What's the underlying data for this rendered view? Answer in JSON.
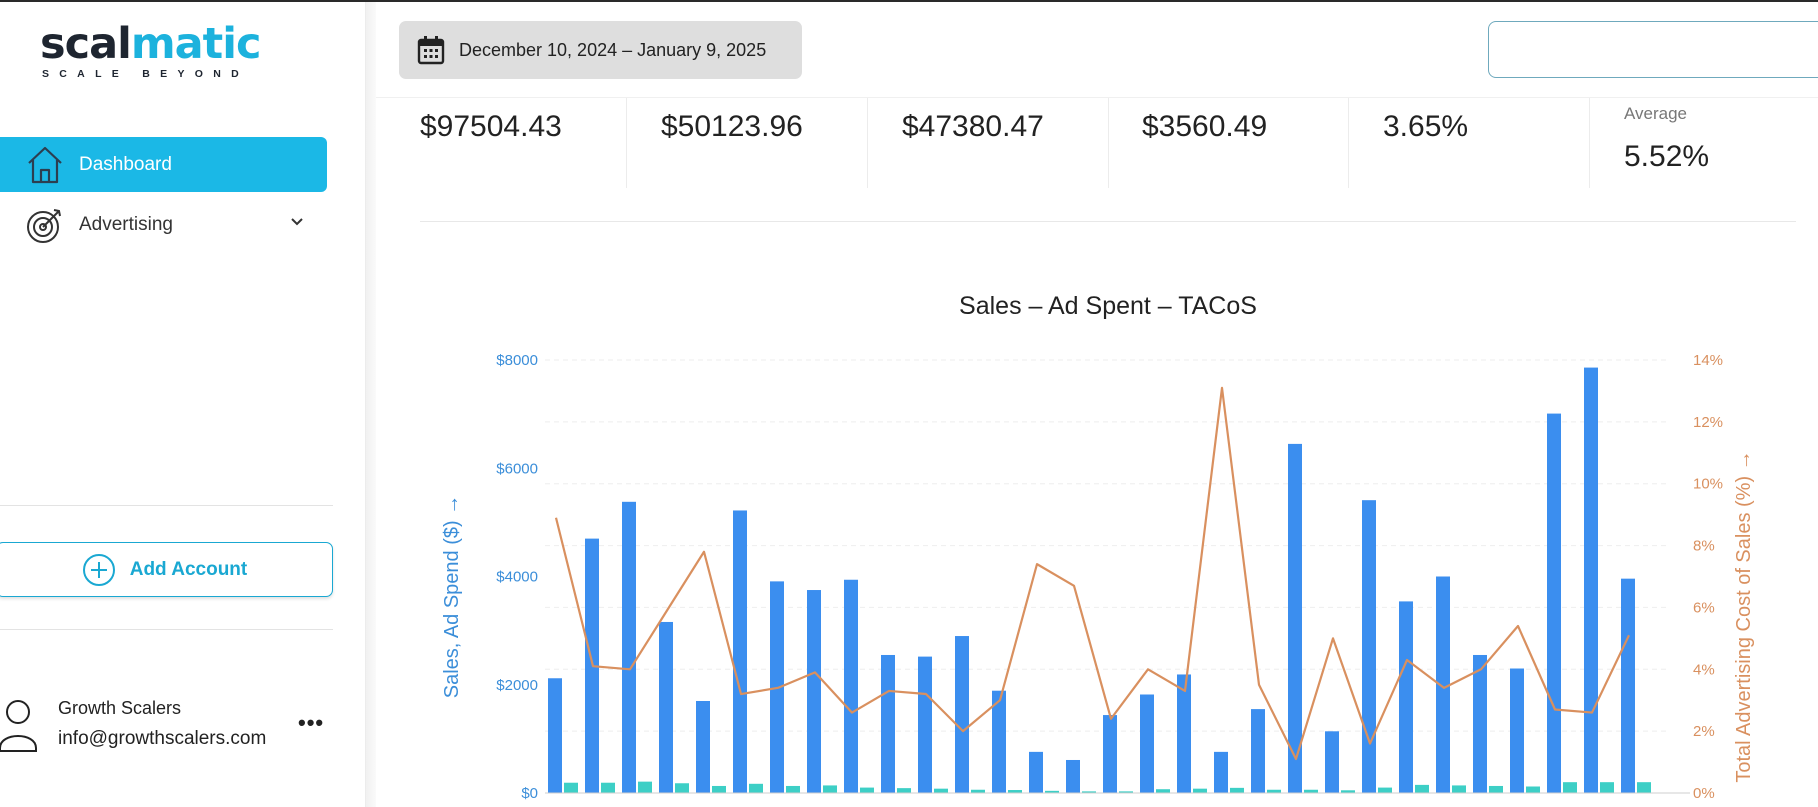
{
  "brand": {
    "logo_dark": "scal",
    "logo_teal": "matic",
    "tagline": "SCALE BEYOND",
    "accent_color": "#1bb8e6"
  },
  "sidebar": {
    "items": [
      {
        "label": "Dashboard",
        "icon": "home-icon",
        "active": true
      },
      {
        "label": "Advertising",
        "icon": "target-icon",
        "active": false,
        "expandable": true
      }
    ],
    "add_account_label": "Add Account",
    "user": {
      "name": "Growth Scalers",
      "email": "info@growthscalers.com",
      "more": "•••"
    }
  },
  "header": {
    "date_range": "December 10, 2024 – January 9, 2025",
    "search_value": ""
  },
  "kpis": [
    {
      "value": "$97504.43"
    },
    {
      "value": "$50123.96"
    },
    {
      "value": "$47380.47"
    },
    {
      "value": "$3560.49"
    },
    {
      "value": "3.65%"
    },
    {
      "label": "Average",
      "value": "5.52%"
    }
  ],
  "chart_data": {
    "type": "bar",
    "title": "Sales – Ad Spent – TACoS",
    "ylabel": "Sales, Ad Spend ($) →",
    "y2label": "Total Advertising Cost of Sales (%) →",
    "ylim": [
      0,
      8000
    ],
    "y2lim": [
      0,
      14
    ],
    "y_ticks": [
      "$0",
      "$2000",
      "$4000",
      "$6000",
      "$8000"
    ],
    "y2_ticks": [
      "0%",
      "2%",
      "4%",
      "6%",
      "8%",
      "10%",
      "12%",
      "14%"
    ],
    "grid": true,
    "colors": {
      "sales": "#3b8eef",
      "ad_spend": "#3dcfc6",
      "tacos": "#d9905f",
      "left_axis": "#3b8ed9",
      "right_axis": "#d9905f"
    },
    "series": [
      {
        "type": "bar",
        "values": [
          2120,
          4700,
          5380,
          3160,
          1700,
          5220,
          3910,
          3750,
          3940,
          2550,
          2520,
          2900,
          1890,
          760,
          610,
          1440,
          1820,
          2190,
          760,
          1550,
          6450,
          1140,
          5410,
          3540,
          4000,
          2550,
          2300,
          7010,
          7860,
          3960
        ]
      },
      {
        "type": "bar",
        "values": [
          190,
          190,
          210,
          180,
          130,
          170,
          130,
          140,
          100,
          90,
          80,
          60,
          55,
          40,
          30,
          30,
          70,
          80,
          95,
          60,
          60,
          50,
          100,
          150,
          140,
          130,
          120,
          200,
          200,
          200
        ]
      },
      {
        "type": "line",
        "values": [
          8.9,
          4.1,
          4.0,
          5.9,
          7.8,
          3.2,
          3.4,
          3.9,
          2.6,
          3.3,
          3.2,
          2.0,
          3.0,
          7.4,
          6.7,
          2.4,
          4.0,
          3.3,
          13.1,
          3.5,
          1.1,
          5.0,
          1.6,
          4.3,
          3.4,
          4.0,
          5.4,
          2.7,
          2.6,
          5.1
        ]
      }
    ]
  }
}
